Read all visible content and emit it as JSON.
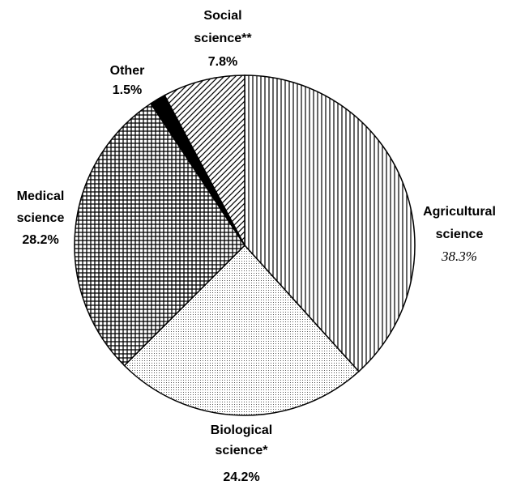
{
  "chart_data": {
    "type": "pie",
    "categories": [
      "Agricultural science",
      "Biological science*",
      "Medical science",
      "Other",
      "Social science**"
    ],
    "values": [
      38.3,
      24.2,
      28.2,
      1.5,
      7.8
    ],
    "value_labels": [
      "38.3%",
      "24.2%",
      "28.2%",
      "1.5%",
      "7.8%"
    ],
    "patterns": [
      "vertical-lines",
      "dots",
      "grid",
      "solid",
      "diagonal-lines"
    ],
    "color": "#000000",
    "start_angle": 0,
    "direction": "clockwise"
  }
}
